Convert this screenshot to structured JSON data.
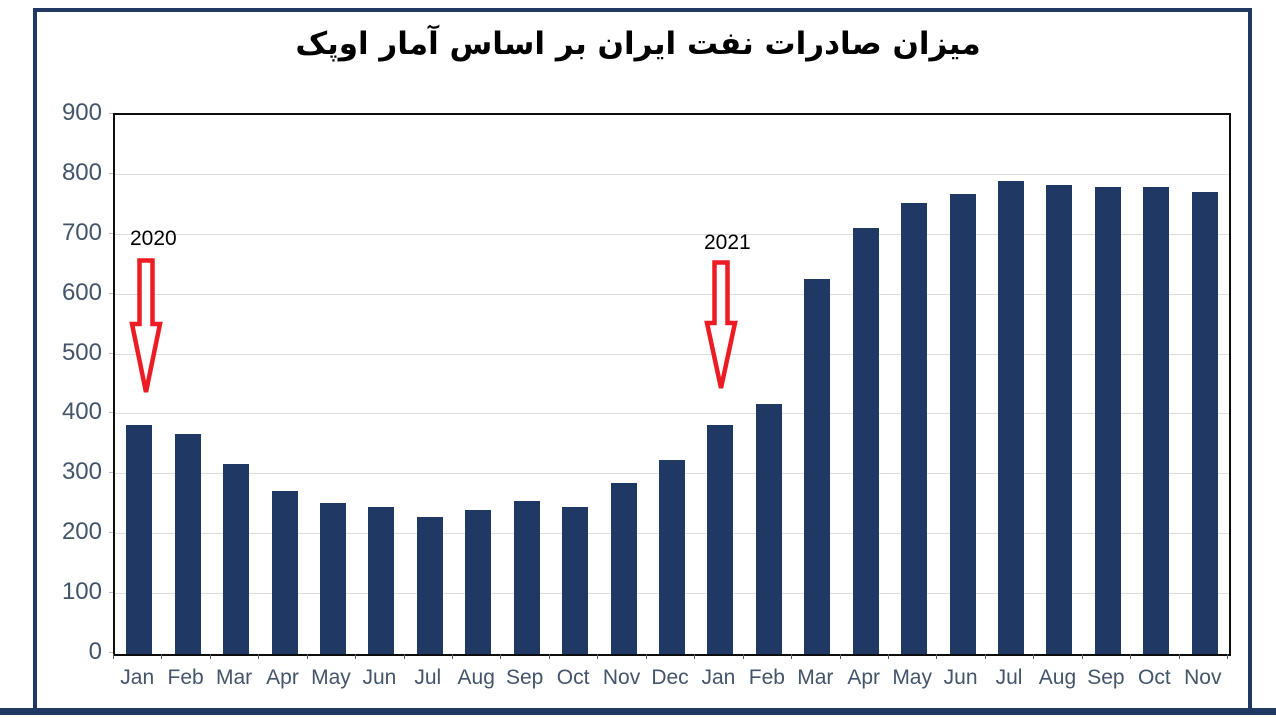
{
  "chart_data": {
    "type": "bar",
    "title": "میزان صادرات نفت ایران بر اساس آمار اوپک",
    "categories": [
      "Jan",
      "Feb",
      "Mar",
      "Apr",
      "May",
      "Jun",
      "Jul",
      "Aug",
      "Sep",
      "Oct",
      "Nov",
      "Dec",
      "Jan",
      "Feb",
      "Mar",
      "Apr",
      "May",
      "Jun",
      "Jul",
      "Aug",
      "Sep",
      "Oct",
      "Nov"
    ],
    "values": [
      383,
      368,
      317,
      272,
      252,
      246,
      228,
      240,
      256,
      246,
      285,
      324,
      383,
      418,
      626,
      711,
      753,
      768,
      790,
      783,
      780,
      780,
      772
    ],
    "xlabel": "",
    "ylabel": "",
    "ylim": [
      0,
      900
    ],
    "ytick_interval": 100,
    "yticks": [
      0,
      100,
      200,
      300,
      400,
      500,
      600,
      700,
      800,
      900
    ],
    "grid": true,
    "legend": "none",
    "bar_color": "#1f3864",
    "annotations": [
      {
        "label": "2020",
        "category_index": 0,
        "shape": "down-arrow",
        "color": "#ed1c24"
      },
      {
        "label": "2021",
        "category_index": 12,
        "shape": "down-arrow",
        "color": "#ed1c24"
      }
    ]
  },
  "colors": {
    "navy": "#1f3864",
    "axis_text": "#44546a",
    "gridline": "#dcdce2",
    "plot_border": "#0d0d0d",
    "arrow_red": "#ed1c24",
    "background": "#ffffff"
  }
}
